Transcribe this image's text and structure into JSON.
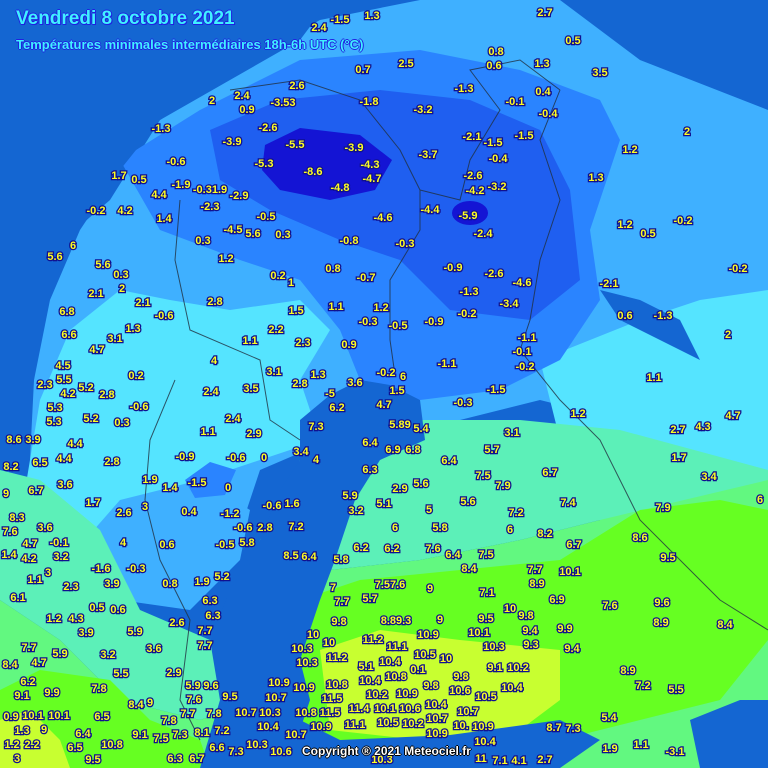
{
  "header": {
    "title": "Vendredi 8 octobre 2021",
    "subtitle": "Températures minimales intermédiaires 18h-6h UTC (°C)"
  },
  "footer": {
    "copyright": "Copyright ® 2021 Meteociel.fr"
  },
  "colors": {
    "sea": "#1466d2",
    "below_minus4": "#1414d4",
    "minus4_minus2": "#1f5ff0",
    "minus2_0": "#2a84ff",
    "zero_2": "#3fb0ff",
    "two_4": "#55e4ff",
    "four_6": "#5cf0b8",
    "six_8": "#62f880",
    "eight_10": "#66ff22",
    "above_10": "#c8ff30",
    "label_text": "#ffff20"
  },
  "map": {
    "labels": [
      "-1.5",
      "1.3",
      "2.7",
      "2.4",
      "0.8",
      "0.5",
      "2.5",
      "0.6",
      "1.3",
      "0.7",
      "3.5",
      "2.6",
      "2.4",
      "2",
      "0.9",
      "-3.53",
      "-1.8",
      "-3.2",
      "-1.3",
      "-0.1",
      "0.4",
      "-0.4",
      "-1.3",
      "-2.6",
      "-3.9",
      "-5.5",
      "-3.9",
      "-2.1",
      "-1.5",
      "-1.5",
      "2",
      "1.2",
      "-0.6",
      "-5.3",
      "-8.6",
      "-4.3",
      "-4.7",
      "-3.7",
      "-0.4",
      "1.7",
      "0.5",
      "-1.9",
      "-0.31.9",
      "-2.9",
      "-4.8",
      "-2.6",
      "-4.2",
      "-3.2",
      "1.3",
      "4.4",
      "-0.2",
      "4.2",
      "-2.3",
      "1.4",
      "-0.5",
      "-4.6",
      "-4.4",
      "-5.9",
      "1.2",
      "-0.2",
      "-4.5",
      "5.6",
      "0.3",
      "-0.8",
      "-0.3",
      "-2.4",
      "0.3",
      "0.5",
      "5.6",
      "6",
      "1.2",
      "5.6",
      "0.3",
      "0.2",
      "1",
      "0.8",
      "-0.7",
      "-0.9",
      "-2.6",
      "-4.6",
      "-2.1",
      "-0.2",
      "2",
      "-1.3",
      "6.8",
      "2.1",
      "2.1",
      "-0.6",
      "2.8",
      "1.5",
      "1.1",
      "1.2",
      "-0.3",
      "-0.5",
      "-0.9",
      "-0.2",
      "-3.4",
      "0.6",
      "-1.3",
      "6.6",
      "1.3",
      "3.1",
      "2.2",
      "1.1",
      "2.3",
      "0.9",
      "-1.1",
      "-0.1",
      "-0.2",
      "2",
      "4.7",
      "4.5",
      "5.5",
      "4",
      "-1.1",
      "3.1",
      "1.3",
      "-0.2",
      "6",
      "5.2",
      "2.3",
      "0.2",
      "2.4",
      "3.5",
      "2.8",
      "3.6",
      "1.5",
      "-1.5",
      "1.1",
      "4.2",
      "2.8",
      "-5",
      "5.3",
      "5.3",
      "-0.6",
      "6.2",
      "4.7",
      "-0.3",
      "1.2",
      "4.7",
      "8.6",
      "3.9",
      "4.4",
      "5.2",
      "0.3",
      "2.4",
      "7.3",
      "5.89",
      "5.4",
      "3.1",
      "2.7",
      "4.3",
      "6.5",
      "4.4",
      "2.8",
      "-0.9",
      "-0.6",
      "0",
      "1.1",
      "2.9",
      "3.4",
      "4",
      "6.4",
      "6.9",
      "6.8",
      "6.4",
      "5.7",
      "1.7",
      "8.2",
      "1.9",
      "-1.5",
      "1.4",
      "0",
      "6.3",
      "7.5",
      "6.7",
      "3.4",
      "3.6",
      "6.7",
      "2.9",
      "5.6",
      "7.9",
      "9",
      "5.9",
      "1.7",
      "1.6",
      "-0.6",
      "5.6",
      "7.4",
      "7.9",
      "6",
      "2.6",
      "3",
      "0.4",
      "-1.2",
      "3.2",
      "5.1",
      "5",
      "7.2",
      "8.3",
      "7.6",
      "3.6",
      "-0.1",
      "4.7",
      "3.2",
      "7.2",
      "-0.6",
      "2.8",
      "6",
      "5.8",
      "6",
      "8.2",
      "8.6",
      "4",
      "0.6",
      "-0.5",
      "5.8",
      "6.2",
      "6.2",
      "7.6",
      "6.4",
      "7.5",
      "6.7",
      "1.4",
      "4.2",
      "8.5",
      "6.4",
      "5.8",
      "9.5",
      "8.4",
      "-1.6",
      "-0.3",
      "3.9",
      "2.3",
      "3",
      "1.1",
      "6.1",
      "0.8",
      "1.9",
      "5.2",
      "6.3",
      "0.5",
      "0.6",
      "1.2",
      "4.3",
      "3.9",
      "2.6",
      "5.9",
      "7.7",
      "7.7",
      "4.7",
      "5.9",
      "3.2",
      "3.6",
      "8.4",
      "5.5",
      "2.9",
      "6.2",
      "9.1",
      "9.9",
      "7.8",
      "5.9",
      "9.6",
      "7.6",
      "9.5",
      "0.9",
      "10.1",
      "10.1",
      "8.4",
      "9",
      "6.5",
      "7.7",
      "7.8",
      "1.3",
      "9",
      "6.4",
      "9.1",
      "7.3",
      "8.1",
      "6.5",
      "10.8",
      "6.6",
      "1.2",
      "2.2",
      "9.5",
      "6.3",
      "6.7",
      "3",
      "7.57.6",
      "9",
      "7",
      "5.7",
      "7.7",
      "7.7",
      "8.9",
      "7.1",
      "6.9",
      "10.1",
      "9.8",
      "8.89.3",
      "9",
      "10",
      "9.8",
      "9.5",
      "9.4",
      "10.9",
      "10.1",
      "10",
      "10",
      "11.2",
      "10.3",
      "9.3",
      "11.2",
      "10.3",
      "10.5",
      "10",
      "10.4",
      "10.8",
      "0.1",
      "9.1",
      "10.2",
      "9.8",
      "10.4",
      "10.6",
      "10.4",
      "10.9",
      "10.2",
      "10.9",
      "9.8",
      "10.1",
      "10.6",
      "11.5",
      "11.5",
      "11.4",
      "10.5",
      "10.4",
      "10.7",
      "10.5",
      "10.2",
      "10.7",
      "10.",
      "10.9",
      "11.1",
      "10.9",
      "10.9",
      "10.4",
      "8.7",
      "10.7",
      "10.8",
      "10.8",
      "5.1",
      "11.1",
      "11",
      "9.6",
      "7.6",
      "8.4",
      "8.9",
      "9.9",
      "9.4",
      "8.9",
      "7.2",
      "5.5",
      "5.4",
      "7.3",
      "1.9",
      "1.1",
      "-3.1",
      "2.7",
      "7.1",
      "4.1",
      "10.3",
      "10.6",
      "10.4",
      "10.3",
      "10.3",
      "10.7",
      "10.7",
      "10.9",
      "10.3",
      "7.7",
      "6.3",
      "7.2",
      "7.8",
      "7.5",
      "7.3"
    ]
  }
}
